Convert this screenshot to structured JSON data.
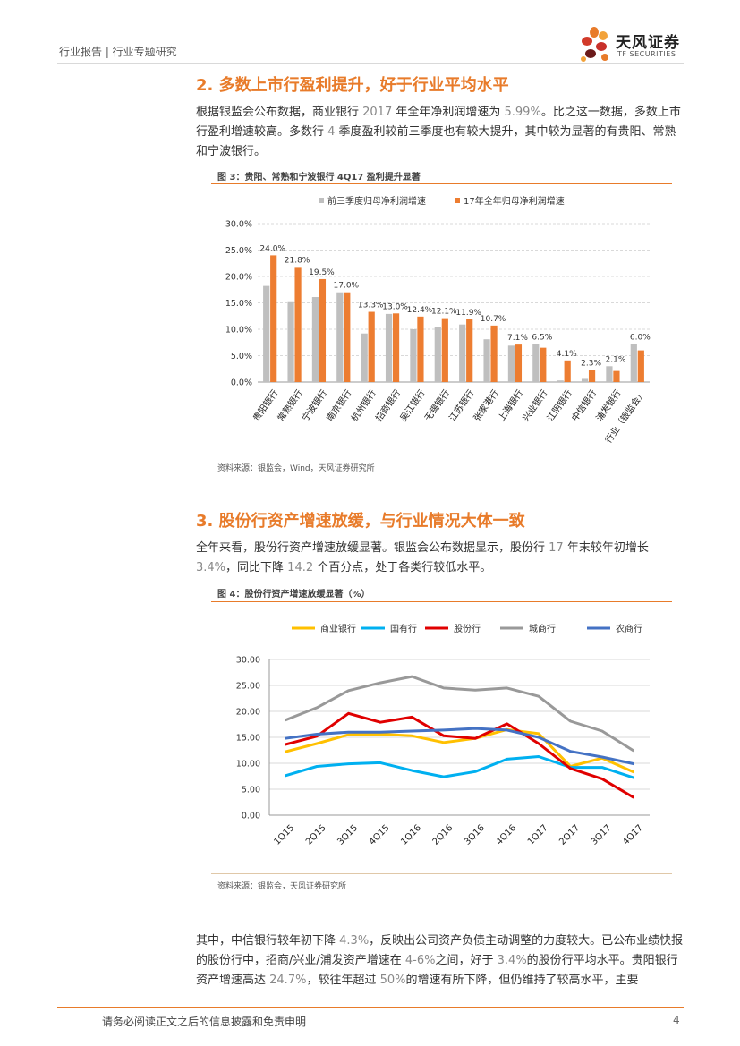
{
  "header": {
    "report_type": "行业报告 | 行业专题研究",
    "logo_cn": "天风证券",
    "logo_en": "TF SECURITIES"
  },
  "section2": {
    "title": "2. 多数上市行盈利提升，好于行业平均水平",
    "para": [
      {
        "t": "根据银监会公布数据，商业银行 "
      },
      {
        "t": "2017",
        "n": true
      },
      {
        "t": " 年全年净利润增速为 "
      },
      {
        "t": "5.99%",
        "n": true
      },
      {
        "t": "。比之这一数据，多数上市行盈利增速较高。多数行 "
      },
      {
        "t": "4",
        "n": true
      },
      {
        "t": " 季度盈利较前三季度也有较大提升，其中较为显著的有贵阳、常熟和宁波银行。"
      }
    ]
  },
  "figure3": {
    "title": "图 3：贵阳、常熟和宁波银行 4Q17 盈利提升显著",
    "source": "资料来源：银监会，Wind，天风证券研究所"
  },
  "section3": {
    "title": "3. 股份行资产增速放缓，与行业情况大体一致",
    "para": [
      {
        "t": "全年来看，股份行资产增速放缓显著。银监会公布数据显示，股份行 "
      },
      {
        "t": "17",
        "n": true
      },
      {
        "t": " 年末较年初增长 "
      },
      {
        "t": "3.4%",
        "n": true
      },
      {
        "t": "，同比下降 "
      },
      {
        "t": "14.2",
        "n": true
      },
      {
        "t": " 个百分点，处于各类行较低水平。"
      }
    ]
  },
  "figure4": {
    "title": "图 4：股份行资产增速放缓显著（%）",
    "source": "资料来源：银监会，天风证券研究所"
  },
  "section4": {
    "para": [
      {
        "t": "其中，中信银行较年初下降 "
      },
      {
        "t": "4.3%",
        "n": true
      },
      {
        "t": "，反映出公司资产负债主动调整的力度较大。已公布业绩快报的股份行中，招商/兴业/浦发资产增速在 "
      },
      {
        "t": "4-6%",
        "n": true
      },
      {
        "t": "之间，好于 "
      },
      {
        "t": "3.4%",
        "n": true
      },
      {
        "t": "的股份行平均水平。贵阳银行资产增速高达 "
      },
      {
        "t": "24.7%",
        "n": true
      },
      {
        "t": "，较往年超过 "
      },
      {
        "t": "50%",
        "n": true
      },
      {
        "t": "的增速有所下降，但仍维持了较高水平，主要"
      }
    ]
  },
  "footer": {
    "disclaimer": "请务必阅读正文之后的信息披露和免责申明",
    "page_number": "4"
  },
  "chart_data": [
    {
      "type": "bar",
      "title": "贵阳、常熟和宁波银行 4Q17 盈利提升显著",
      "categories": [
        "贵阳银行",
        "常熟银行",
        "宁波银行",
        "南京银行",
        "杭州银行",
        "招商银行",
        "吴江银行",
        "无锡银行",
        "江苏银行",
        "张家港行",
        "上海银行",
        "兴业银行",
        "江阴银行",
        "中信银行",
        "浦发银行",
        "行业（银监会）"
      ],
      "series": [
        {
          "name": "前三季度归母净利润增速",
          "color": "#bfbfbf",
          "values": [
            18.2,
            15.3,
            16.1,
            17.0,
            9.2,
            12.9,
            10.0,
            10.5,
            10.9,
            8.1,
            6.9,
            7.2,
            0.3,
            0.6,
            3.0,
            7.2
          ]
        },
        {
          "name": "17年全年归母净利润增速",
          "color": "#ed7d31",
          "values": [
            24.0,
            21.8,
            19.5,
            17.0,
            13.3,
            13.0,
            12.4,
            12.1,
            11.9,
            10.7,
            7.1,
            6.5,
            4.1,
            2.3,
            2.1,
            6.0
          ]
        }
      ],
      "data_labels": [
        "24.0%",
        "21.8%",
        "19.5%",
        "17.0%",
        "13.3%",
        "13.0%",
        "12.4%",
        "12.1%",
        "11.9%",
        "10.7%",
        "7.1%",
        "6.5%",
        "4.1%",
        "2.3%",
        "2.1%",
        "6.0%"
      ],
      "ylim": [
        0,
        30
      ],
      "yticks": [
        0,
        5,
        10,
        15,
        20,
        25,
        30
      ],
      "ytick_labels": [
        "0.0%",
        "5.0%",
        "10.0%",
        "15.0%",
        "20.0%",
        "25.0%",
        "30.0%"
      ],
      "legend": "top",
      "grid": true
    },
    {
      "type": "line",
      "title": "股份行资产增速放缓显著（%）",
      "x": [
        "1Q15",
        "2Q15",
        "3Q15",
        "4Q15",
        "1Q16",
        "2Q16",
        "3Q16",
        "4Q16",
        "1Q17",
        "2Q17",
        "3Q17",
        "4Q17"
      ],
      "series": [
        {
          "name": "商业银行",
          "color": "#ffc000",
          "values": [
            12.2,
            13.8,
            15.5,
            15.6,
            15.3,
            14.0,
            14.8,
            16.5,
            15.7,
            9.4,
            11.0,
            8.3
          ]
        },
        {
          "name": "国有行",
          "color": "#00b0f0",
          "values": [
            7.6,
            9.4,
            9.9,
            10.1,
            8.6,
            7.4,
            8.4,
            10.8,
            11.3,
            9.2,
            9.2,
            7.2
          ]
        },
        {
          "name": "股份行",
          "color": "#e00000",
          "values": [
            13.6,
            15.2,
            19.6,
            17.9,
            18.9,
            15.3,
            14.8,
            17.6,
            13.8,
            9.0,
            7.0,
            3.4
          ]
        },
        {
          "name": "城商行",
          "color": "#999999",
          "values": [
            18.3,
            20.7,
            24.0,
            25.5,
            26.7,
            24.5,
            24.1,
            24.5,
            22.9,
            18.1,
            16.2,
            12.4
          ]
        },
        {
          "name": "农商行",
          "color": "#4472c4",
          "values": [
            14.8,
            15.6,
            16.0,
            16.0,
            16.2,
            16.4,
            16.7,
            16.4,
            15.0,
            12.3,
            11.2,
            9.9
          ]
        }
      ],
      "ylim": [
        0,
        30
      ],
      "yticks": [
        0,
        5,
        10,
        15,
        20,
        25,
        30
      ],
      "ytick_labels": [
        "0.00",
        "5.00",
        "10.00",
        "15.00",
        "20.00",
        "25.00",
        "30.00"
      ],
      "legend": "top",
      "grid": true
    }
  ]
}
